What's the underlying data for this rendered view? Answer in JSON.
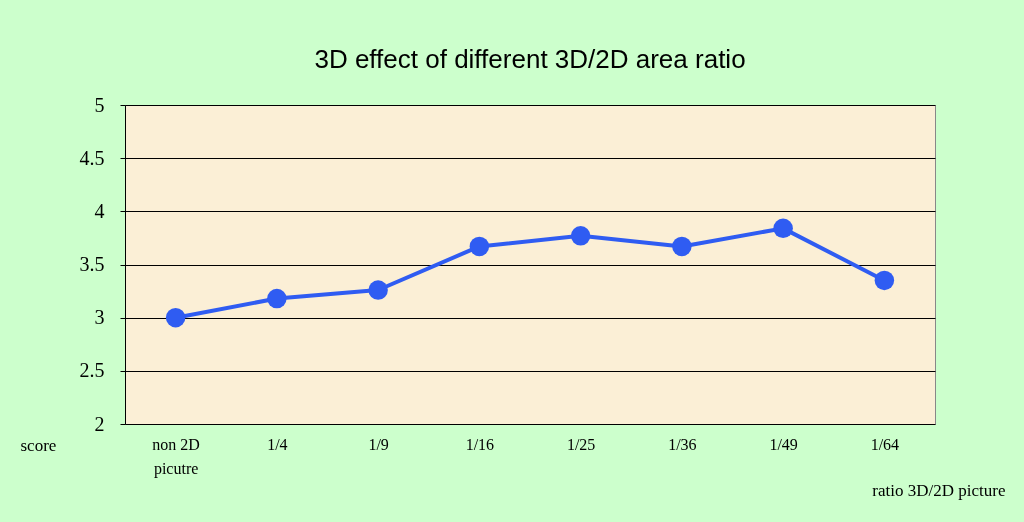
{
  "chart_data": {
    "type": "line",
    "title": "3D effect of different 3D/2D area ratio",
    "xlabel": "ratio 3D/2D picture",
    "ylabel": "score",
    "categories": [
      "non 2D\npicutre",
      "1/4",
      "1/9",
      "1/16",
      "1/25",
      "1/36",
      "1/49",
      "1/64"
    ],
    "series": [
      {
        "color": "#2f5cf2",
        "values": [
          3.0,
          3.18,
          3.26,
          3.67,
          3.77,
          3.67,
          3.84,
          3.35
        ]
      }
    ],
    "ylim": [
      2,
      5
    ],
    "yticks": [
      2,
      2.5,
      3,
      3.5,
      4,
      4.5,
      5
    ],
    "grid": "y",
    "legend": false,
    "marker": "circle",
    "line_style": "solid"
  }
}
